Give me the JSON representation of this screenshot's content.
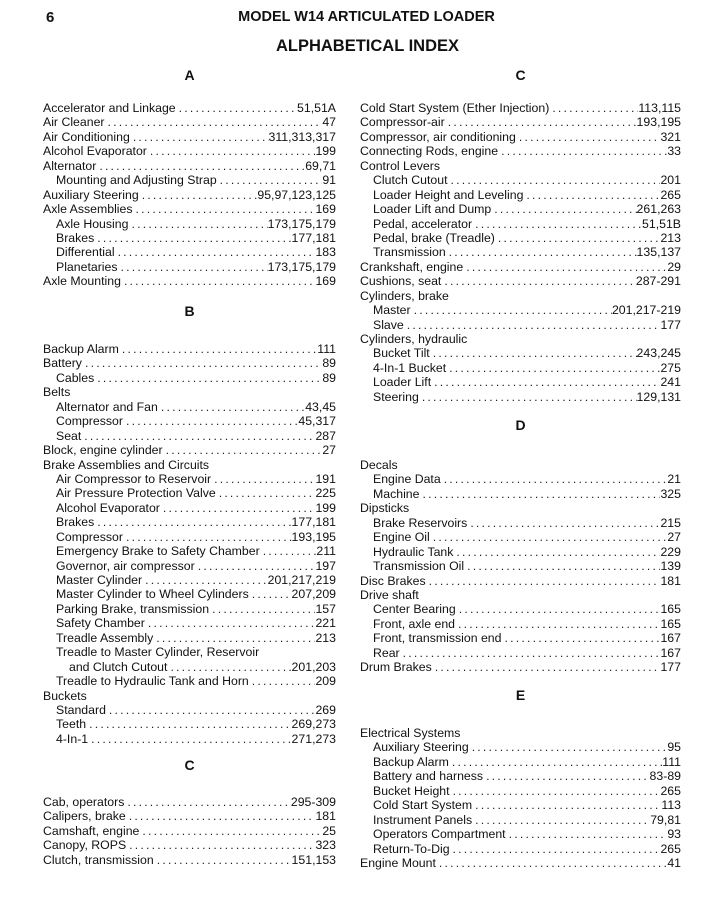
{
  "header": {
    "page_number": "6",
    "model_title": "MODEL W14 ARTICULATED LOADER",
    "index_title": "ALPHABETICAL INDEX"
  },
  "left": [
    {
      "letter": "A",
      "entries": [
        {
          "label": "Accelerator and Linkage",
          "page": "51,51A",
          "indent": 0
        },
        {
          "label": "Air Cleaner",
          "page": "47",
          "indent": 0
        },
        {
          "label": "Air Conditioning",
          "page": "311,313,317",
          "indent": 0
        },
        {
          "label": "Alcohol Evaporator",
          "page": "199",
          "indent": 0
        },
        {
          "label": "Alternator",
          "page": "69,71",
          "indent": 0
        },
        {
          "label": "Mounting and Adjusting Strap",
          "page": "91",
          "indent": 1
        },
        {
          "label": "Auxiliary Steering",
          "page": "95,97,123,125",
          "indent": 0
        },
        {
          "label": "Axle Assemblies",
          "page": "169",
          "indent": 0
        },
        {
          "label": "Axle Housing",
          "page": "173,175,179",
          "indent": 1
        },
        {
          "label": "Brakes",
          "page": "177,181",
          "indent": 1
        },
        {
          "label": "Differential",
          "page": "183",
          "indent": 1
        },
        {
          "label": "Planetaries",
          "page": "173,175,179",
          "indent": 1
        },
        {
          "label": "Axle Mounting",
          "page": "169",
          "indent": 0
        }
      ]
    },
    {
      "letter": "B",
      "entries": [
        {
          "label": "Backup Alarm",
          "page": "111",
          "indent": 0
        },
        {
          "label": "Battery",
          "page": "89",
          "indent": 0
        },
        {
          "label": "Cables",
          "page": "89",
          "indent": 1
        },
        {
          "label": "Belts",
          "page": "",
          "indent": 0
        },
        {
          "label": "Alternator and Fan",
          "page": "43,45",
          "indent": 1
        },
        {
          "label": "Compressor",
          "page": "45,317",
          "indent": 1
        },
        {
          "label": "Seat",
          "page": "287",
          "indent": 1
        },
        {
          "label": "Block, engine cylinder",
          "page": "27",
          "indent": 0
        },
        {
          "label": "Brake Assemblies and Circuits",
          "page": "",
          "indent": 0
        },
        {
          "label": "Air Compressor to Reservoir",
          "page": "191",
          "indent": 1
        },
        {
          "label": "Air Pressure Protection Valve",
          "page": "225",
          "indent": 1
        },
        {
          "label": "Alcohol Evaporator",
          "page": "199",
          "indent": 1
        },
        {
          "label": "Brakes",
          "page": "177,181",
          "indent": 1
        },
        {
          "label": "Compressor",
          "page": "193,195",
          "indent": 1
        },
        {
          "label": "Emergency Brake to Safety Chamber",
          "page": "211",
          "indent": 1
        },
        {
          "label": "Governor, air compressor",
          "page": "197",
          "indent": 1
        },
        {
          "label": "Master Cylinder",
          "page": "201,217,219",
          "indent": 1
        },
        {
          "label": "Master Cylinder to Wheel Cylinders",
          "page": "207,209",
          "indent": 1
        },
        {
          "label": "Parking Brake, transmission",
          "page": "157",
          "indent": 1
        },
        {
          "label": "Safety Chamber",
          "page": "221",
          "indent": 1
        },
        {
          "label": "Treadle Assembly",
          "page": "213",
          "indent": 1
        },
        {
          "label": "Treadle to Master Cylinder, Reservoir",
          "page": "",
          "indent": 1
        },
        {
          "label": "and Clutch Cutout",
          "page": "201,203",
          "indent": 2
        },
        {
          "label": "Treadle to Hydraulic Tank and Horn",
          "page": "209",
          "indent": 1
        },
        {
          "label": "Buckets",
          "page": "",
          "indent": 0
        },
        {
          "label": "Standard",
          "page": "269",
          "indent": 1
        },
        {
          "label": "Teeth",
          "page": "269,273",
          "indent": 1
        },
        {
          "label": "4-In-1",
          "page": "271,273",
          "indent": 1
        }
      ]
    },
    {
      "letter": "C",
      "entries": [
        {
          "label": "Cab, operators",
          "page": "295-309",
          "indent": 0
        },
        {
          "label": "Calipers, brake",
          "page": "181",
          "indent": 0
        },
        {
          "label": "Camshaft, engine",
          "page": "25",
          "indent": 0
        },
        {
          "label": "Canopy, ROPS",
          "page": "323",
          "indent": 0
        },
        {
          "label": "Clutch, transmission",
          "page": "151,153",
          "indent": 0
        }
      ]
    }
  ],
  "right": [
    {
      "letter": "C",
      "entries": [
        {
          "label": "Cold Start System (Ether Injection)",
          "page": "113,115",
          "indent": 0
        },
        {
          "label": "Compressor-air",
          "page": "193,195",
          "indent": 0
        },
        {
          "label": "Compressor, air conditioning",
          "page": "321",
          "indent": 0
        },
        {
          "label": "Connecting Rods, engine",
          "page": "33",
          "indent": 0
        },
        {
          "label": "Control Levers",
          "page": "",
          "indent": 0
        },
        {
          "label": "Clutch Cutout",
          "page": "201",
          "indent": 1
        },
        {
          "label": "Loader Height and Leveling",
          "page": "265",
          "indent": 1
        },
        {
          "label": "Loader Lift and Dump",
          "page": "261,263",
          "indent": 1
        },
        {
          "label": "Pedal, accelerator",
          "page": "51,51B",
          "indent": 1
        },
        {
          "label": "Pedal, brake (Treadle)",
          "page": "213",
          "indent": 1
        },
        {
          "label": "Transmission",
          "page": "135,137",
          "indent": 1
        },
        {
          "label": "Crankshaft, engine",
          "page": "29",
          "indent": 0
        },
        {
          "label": "Cushions, seat",
          "page": "287-291",
          "indent": 0
        },
        {
          "label": "Cylinders, brake",
          "page": "",
          "indent": 0
        },
        {
          "label": "Master",
          "page": "201,217-219",
          "indent": 1
        },
        {
          "label": "Slave",
          "page": "177",
          "indent": 1
        },
        {
          "label": "Cylinders, hydraulic",
          "page": "",
          "indent": 0
        },
        {
          "label": "Bucket Tilt",
          "page": "243,245",
          "indent": 1
        },
        {
          "label": "4-In-1 Bucket",
          "page": "275",
          "indent": 1
        },
        {
          "label": "Loader Lift",
          "page": "241",
          "indent": 1
        },
        {
          "label": "Steering",
          "page": "129,131",
          "indent": 1
        }
      ]
    },
    {
      "letter": "D",
      "entries": [
        {
          "label": "Decals",
          "page": "",
          "indent": 0
        },
        {
          "label": "Engine Data",
          "page": "21",
          "indent": 1
        },
        {
          "label": "Machine",
          "page": "325",
          "indent": 1
        },
        {
          "label": "Dipsticks",
          "page": "",
          "indent": 0
        },
        {
          "label": "Brake Reservoirs",
          "page": "215",
          "indent": 1
        },
        {
          "label": "Engine Oil",
          "page": "27",
          "indent": 1
        },
        {
          "label": "Hydraulic Tank",
          "page": "229",
          "indent": 1
        },
        {
          "label": "Transmission Oil",
          "page": "139",
          "indent": 1
        },
        {
          "label": "Disc Brakes",
          "page": "181",
          "indent": 0
        },
        {
          "label": "Drive shaft",
          "page": "",
          "indent": 0
        },
        {
          "label": "Center Bearing",
          "page": "165",
          "indent": 1
        },
        {
          "label": "Front, axle end",
          "page": "165",
          "indent": 1
        },
        {
          "label": "Front, transmission end",
          "page": "167",
          "indent": 1
        },
        {
          "label": "Rear",
          "page": "167",
          "indent": 1
        },
        {
          "label": "Drum Brakes",
          "page": "177",
          "indent": 0
        }
      ]
    },
    {
      "letter": "E",
      "entries": [
        {
          "label": "Electrical Systems",
          "page": "",
          "indent": 0
        },
        {
          "label": "Auxiliary Steering",
          "page": "95",
          "indent": 1
        },
        {
          "label": "Backup Alarm",
          "page": "111",
          "indent": 1
        },
        {
          "label": "Battery and harness",
          "page": "83-89",
          "indent": 1
        },
        {
          "label": "Bucket Height",
          "page": "265",
          "indent": 1
        },
        {
          "label": "Cold Start System",
          "page": "113",
          "indent": 1
        },
        {
          "label": "Instrument Panels",
          "page": "79,81",
          "indent": 1
        },
        {
          "label": "Operators Compartment",
          "page": "93",
          "indent": 1
        },
        {
          "label": "Return-To-Dig",
          "page": "265",
          "indent": 1
        },
        {
          "label": "Engine Mount",
          "page": "41",
          "indent": 0
        }
      ]
    }
  ]
}
